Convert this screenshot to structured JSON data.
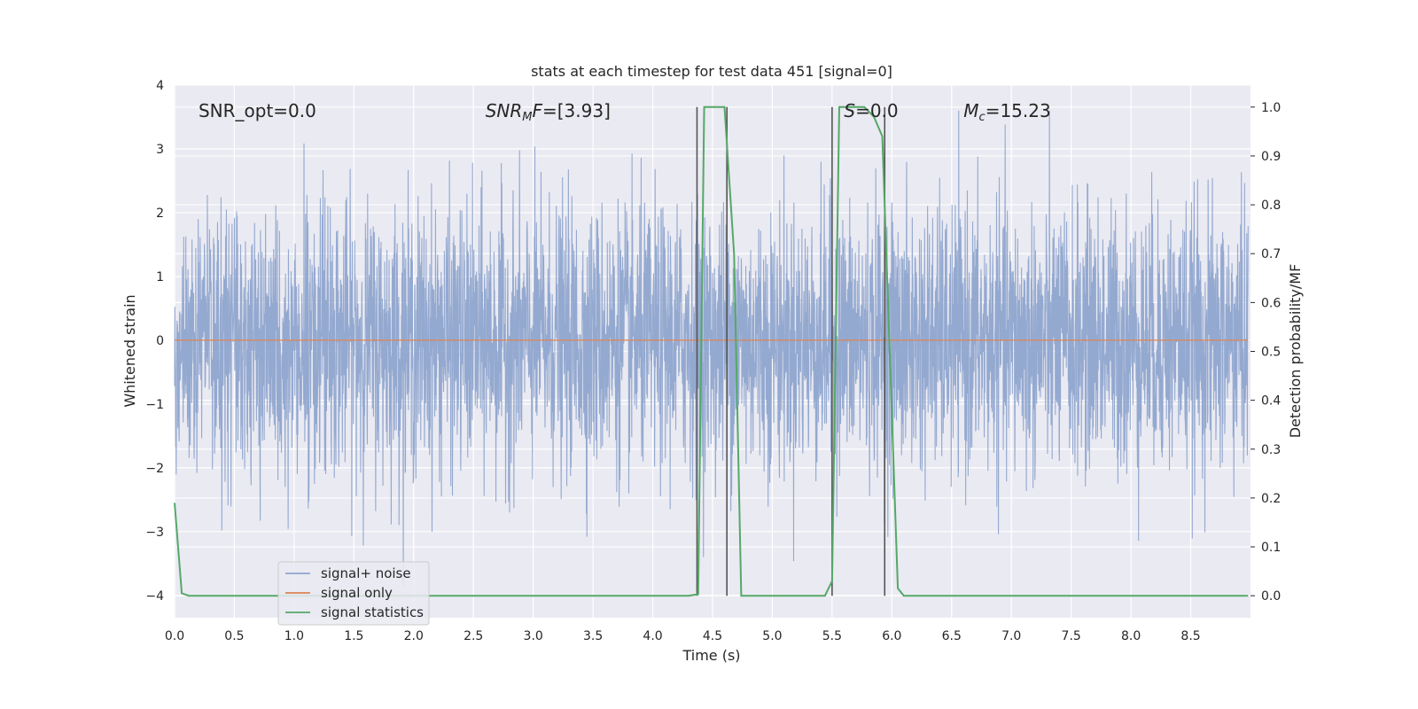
{
  "chart_data": {
    "type": "line",
    "title": "stats at each timestep for test data 451 [signal=0]",
    "xlabel": "Time (s)",
    "ylabel": "Whitened strain",
    "y2label": "Detection probability/MF",
    "xlim": [
      0,
      9.0
    ],
    "ylim": [
      -4.35,
      4.0
    ],
    "y2lim": [
      -0.045,
      1.045
    ],
    "grid": true,
    "legend_position": "lower-left",
    "x_ticks": [
      "0.0",
      "0.5",
      "1.0",
      "1.5",
      "2.0",
      "2.5",
      "3.0",
      "3.5",
      "4.0",
      "4.5",
      "5.0",
      "5.5",
      "6.0",
      "6.5",
      "7.0",
      "7.5",
      "8.0",
      "8.5"
    ],
    "y_ticks": [
      "4",
      "3",
      "2",
      "1",
      "0",
      "−1",
      "−2",
      "−3",
      "−4"
    ],
    "y2_ticks": [
      "1.0",
      "0.9",
      "0.8",
      "0.7",
      "0.6",
      "0.5",
      "0.4",
      "0.3",
      "0.2",
      "0.1",
      "0.0"
    ],
    "annotations": [
      {
        "text": "SNR_opt=0.0",
        "x": 0.2,
        "y": 3.6
      },
      {
        "text": "SNRMF=[3.93]",
        "x": 2.6,
        "y": 3.6
      },
      {
        "text": "S=0.0",
        "x": 5.6,
        "y": 3.6
      },
      {
        "text": "Mc=15.23",
        "x": 6.6,
        "y": 3.6
      }
    ],
    "series": [
      {
        "name": "signal+ noise",
        "color": "#8fa5cd",
        "axis": "left",
        "kind": "noise",
        "amplitude_envelope": {
          "typical_min": -2.0,
          "typical_max": 2.3,
          "max": 3.6,
          "min": -4.1
        },
        "x_range": [
          0,
          8.98
        ]
      },
      {
        "name": "signal only",
        "color": "#dd8452",
        "axis": "left",
        "x": [
          0,
          8.98
        ],
        "y": [
          0,
          0
        ]
      },
      {
        "name": "signal statistics",
        "color": "#55a868",
        "axis": "right",
        "x": [
          0.0,
          0.06,
          0.12,
          4.3,
          4.38,
          4.43,
          4.6,
          4.68,
          4.74,
          5.44,
          5.5,
          5.56,
          5.77,
          5.85,
          5.92,
          6.05,
          6.1,
          8.98
        ],
        "y": [
          0.19,
          0.005,
          0.0,
          0.0,
          0.003,
          1.0,
          1.0,
          0.7,
          0.0,
          0.0,
          0.03,
          1.0,
          1.0,
          0.98,
          0.94,
          0.015,
          0.0,
          0.0
        ]
      }
    ],
    "vertical_lines": [
      {
        "x": 4.37,
        "y_top": 1.0,
        "color": "#555555"
      },
      {
        "x": 4.62,
        "y_top": 1.0,
        "color": "#555555"
      },
      {
        "x": 5.5,
        "y_top": 1.0,
        "color": "#555555"
      },
      {
        "x": 5.94,
        "y_top": 1.0,
        "color": "#555555"
      }
    ]
  }
}
